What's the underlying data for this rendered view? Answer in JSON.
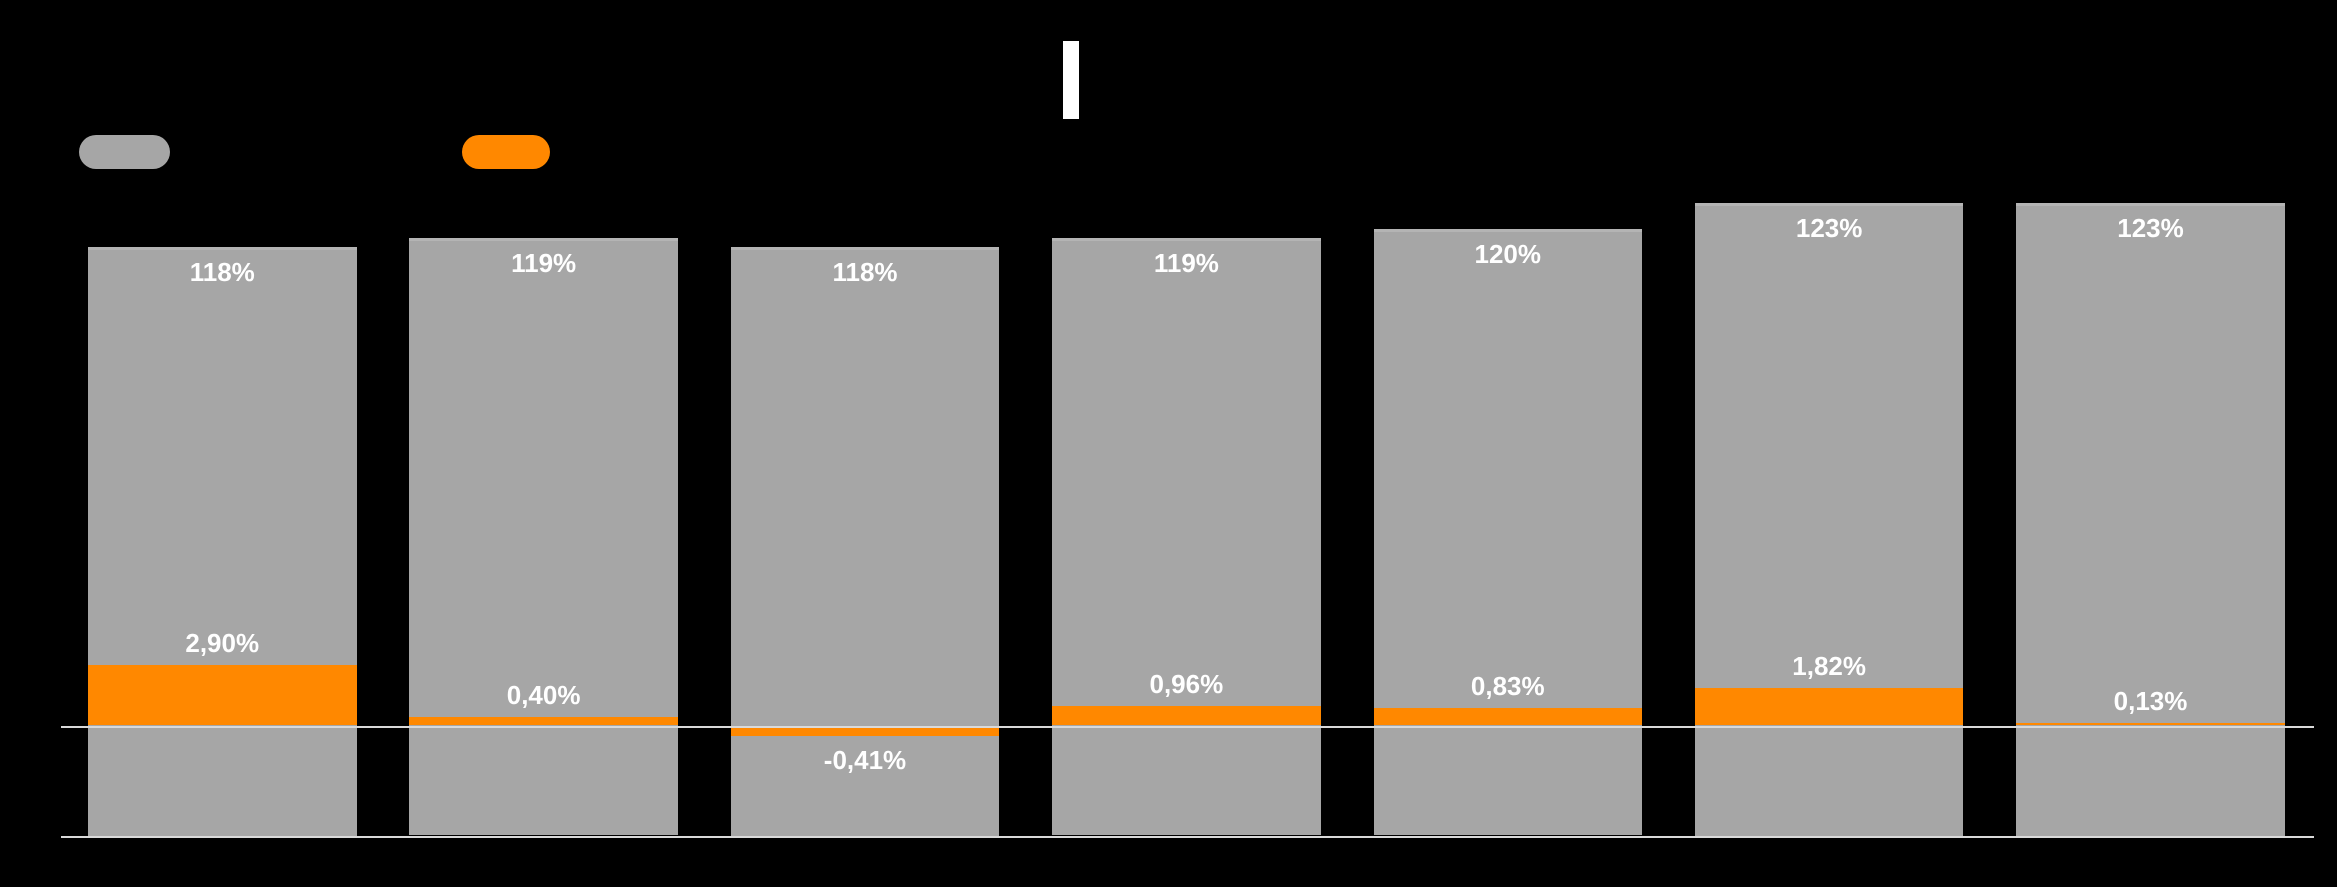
{
  "slide": {
    "background": "#000000"
  },
  "title": {
    "text": "",
    "cursor_visible": true
  },
  "legend": {
    "position": "top-left",
    "items": [
      {
        "id": "gray-series",
        "label": "",
        "color": "#A6A6A6"
      },
      {
        "id": "orange-series",
        "label": "",
        "color": "#FF8800"
      }
    ]
  },
  "chart_data": {
    "type": "bar",
    "orientation": "vertical",
    "background": "#000000",
    "gridlines": false,
    "legend_position": "top-left",
    "category_labels_visible": false,
    "series": [
      {
        "name": "gray-series",
        "color": "#A6A6A6",
        "axis": "primary",
        "values": [
          118,
          119,
          118,
          119,
          120,
          123,
          123
        ],
        "labels": [
          "118%",
          "119%",
          "118%",
          "119%",
          "120%",
          "123%",
          "123%"
        ]
      },
      {
        "name": "orange-series",
        "color": "#FF8800",
        "axis": "secondary",
        "values": [
          2.9,
          0.4,
          -0.41,
          0.96,
          0.83,
          1.82,
          0.13
        ],
        "labels": [
          "2,90%",
          "0,40%",
          "-0,41%",
          "0,96%",
          "0,83%",
          "1,82%",
          "0,13%"
        ]
      }
    ],
    "data_labels": {
      "visible": true,
      "color": "#FFFFFF",
      "bold": true
    },
    "axis_lines": {
      "zero_line": true,
      "bottom_line": true,
      "color": "#D9D9D9"
    }
  }
}
